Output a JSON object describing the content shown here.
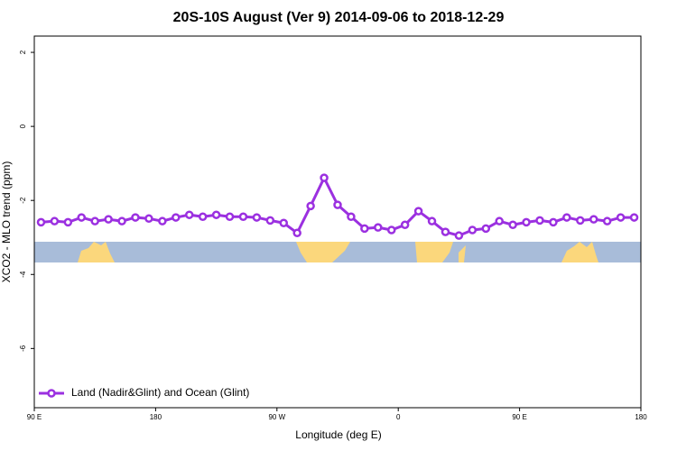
{
  "chart_data": {
    "type": "line",
    "title": "20S-10S August (Ver 9)   2014-09-06 to 2018-12-29",
    "x_label": "Longitude (deg E)",
    "y_label": "XCO2 - MLO trend (ppm)",
    "xlim": [
      90,
      540
    ],
    "ylim": [
      -7.6,
      2.44
    ],
    "xticks": [
      {
        "value": 90,
        "label": "90 E"
      },
      {
        "value": 180,
        "label": "180"
      },
      {
        "value": 270,
        "label": "90 W"
      },
      {
        "value": 360,
        "label": "0"
      },
      {
        "value": 450,
        "label": "90 E"
      },
      {
        "value": 540,
        "label": "180"
      }
    ],
    "yticks": [
      -6,
      -4,
      -2,
      0,
      2
    ],
    "legend": "bottom-left",
    "x": [
      95,
      105,
      115,
      125,
      135,
      145,
      155,
      165,
      175,
      185,
      195,
      205,
      215,
      225,
      235,
      245,
      255,
      265,
      275,
      285,
      295,
      305,
      315,
      325,
      335,
      345,
      355,
      365,
      375,
      385,
      395,
      405,
      415,
      425,
      435,
      445,
      455,
      465,
      475,
      485,
      495,
      505,
      515,
      525,
      535
    ],
    "series": [
      {
        "name": "Land (Nadir&Glint) and Ocean (Glint)",
        "color": "#9b30e0",
        "values": [
          -2.59,
          -2.56,
          -2.59,
          -2.46,
          -2.56,
          -2.51,
          -2.56,
          -2.46,
          -2.49,
          -2.56,
          -2.46,
          -2.39,
          -2.44,
          -2.39,
          -2.44,
          -2.44,
          -2.46,
          -2.54,
          -2.61,
          -2.88,
          -2.15,
          -1.39,
          -2.12,
          -2.44,
          -2.76,
          -2.73,
          -2.8,
          -2.66,
          -2.29,
          -2.56,
          -2.85,
          -2.95,
          -2.8,
          -2.76,
          -2.56,
          -2.66,
          -2.59,
          -2.54,
          -2.59,
          -2.46,
          -2.54,
          -2.51,
          -2.56,
          -2.46,
          -2.46
        ]
      }
    ]
  }
}
